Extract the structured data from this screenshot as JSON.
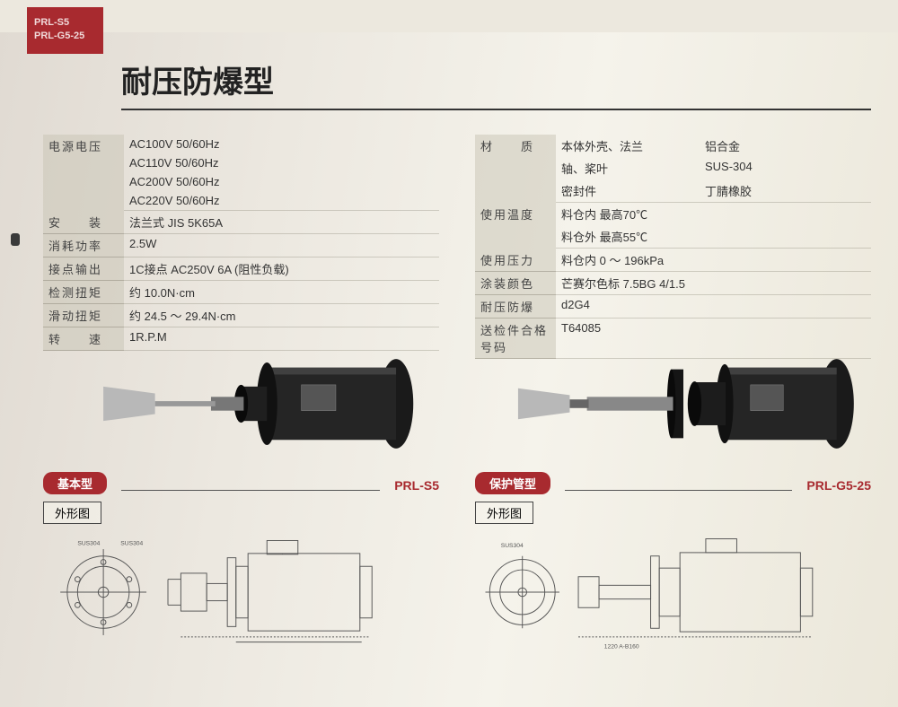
{
  "colors": {
    "brand_red": "#a82a2f",
    "text": "#333333",
    "page_bg": "#f0ece2"
  },
  "header": {
    "model_line1": "PRL-S5",
    "model_line2": "PRL-G5-25",
    "title": "耐压防爆型"
  },
  "left_specs": [
    {
      "label": "电源电压",
      "values": [
        "AC100V  50/60Hz",
        "AC110V  50/60Hz",
        "AC200V  50/60Hz",
        "AC220V  50/60Hz"
      ]
    },
    {
      "label": "安　　装",
      "values": [
        "法兰式 JIS 5K65A"
      ]
    },
    {
      "label": "消耗功率",
      "values": [
        "2.5W"
      ]
    },
    {
      "label": "接点输出",
      "values": [
        "1C接点 AC250V 6A (阻性负载)"
      ]
    },
    {
      "label": "检测扭矩",
      "values": [
        "约 10.0N·cm"
      ]
    },
    {
      "label": "滑动扭矩",
      "values": [
        "约 24.5 ～ 29.4N·cm"
      ]
    },
    {
      "label": "转　　速",
      "values": [
        "1R.P.M"
      ]
    }
  ],
  "right_specs": [
    {
      "label": "材　　质",
      "rows": [
        [
          "本体外壳、法兰",
          "铝合金"
        ],
        [
          "轴、桨叶",
          "SUS-304"
        ],
        [
          "密封件",
          "丁腈橡胶"
        ]
      ]
    },
    {
      "label": "使用温度",
      "rows": [
        [
          "料仓内 最高70℃",
          ""
        ],
        [
          "料仓外 最高55℃",
          ""
        ]
      ]
    },
    {
      "label": "使用压力",
      "rows": [
        [
          "料仓内 0 ～ 196kPa",
          ""
        ]
      ]
    },
    {
      "label": "涂装颜色",
      "rows": [
        [
          "芒赛尔色标 7.5BG 4/1.5",
          ""
        ]
      ]
    },
    {
      "label": "耐压防爆",
      "rows": [
        [
          "d2G4",
          ""
        ]
      ]
    },
    {
      "label": "送检件合格号码",
      "rows": [
        [
          "T64085",
          ""
        ]
      ]
    }
  ],
  "products": [
    {
      "variant_label": "基本型",
      "model": "PRL-S5",
      "outline_label": "外形图"
    },
    {
      "variant_label": "保护管型",
      "model": "PRL-G5-25",
      "outline_label": "外形图"
    }
  ]
}
